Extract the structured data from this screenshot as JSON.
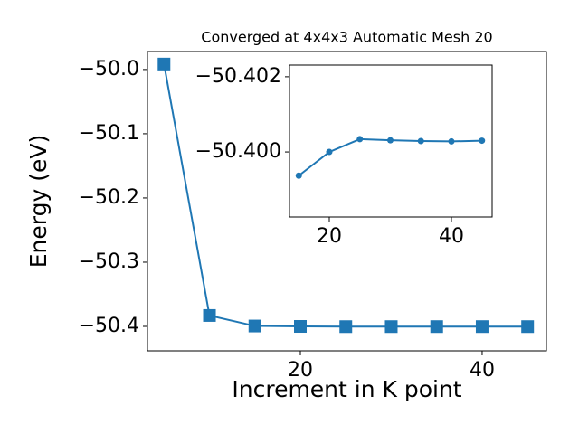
{
  "chart_data": [
    {
      "type": "line",
      "title": "Converged at 4x4x3 Automatic Mesh 20",
      "x_label": "Increment in K point",
      "y_label": "Energy (eV)",
      "x": [
        5,
        10,
        15,
        20,
        25,
        30,
        35,
        40,
        45
      ],
      "values": [
        -49.9915,
        -50.383,
        -50.39937,
        -50.4,
        -50.40034,
        -50.40031,
        -50.40029,
        -50.40028,
        -50.4003
      ],
      "color": "#1f77b4",
      "marker": "square",
      "xlim": [
        3.18,
        47.07
      ],
      "xticks": [
        20,
        40
      ],
      "ylim": [
        -50.438,
        -49.972
      ],
      "yticks": [
        {
          "value": -50.4,
          "label": "−50.4"
        },
        {
          "value": -50.3,
          "label": "−50.3"
        },
        {
          "value": -50.2,
          "label": "−50.2"
        },
        {
          "value": -50.1,
          "label": "−50.1"
        },
        {
          "value": -50.0,
          "label": "−50.0"
        }
      ]
    },
    {
      "type": "line",
      "x": [
        15,
        20,
        25,
        30,
        35,
        40,
        45
      ],
      "values": [
        -50.39937,
        -50.4,
        -50.40034,
        -50.40031,
        -50.40029,
        -50.40028,
        -50.4003
      ],
      "color": "#1f77b4",
      "marker": "circle",
      "xlim": [
        13.48,
        46.67
      ],
      "xticks": [
        20,
        40
      ],
      "ylim": [
        -50.39827,
        -50.40231
      ],
      "yticks": [
        {
          "value": -50.4,
          "label": "−50.400"
        },
        {
          "value": -50.402,
          "label": "−50.402"
        }
      ]
    }
  ]
}
